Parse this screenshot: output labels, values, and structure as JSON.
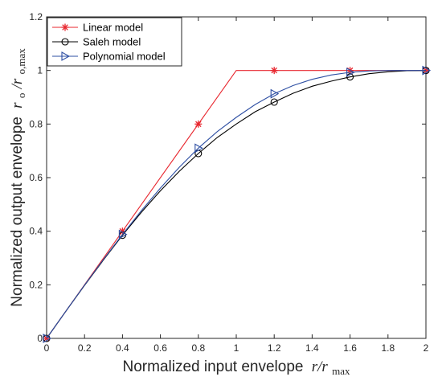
{
  "chart_data": {
    "type": "line",
    "title": "",
    "xlabel": "Normalized input envelope",
    "xlabel_math": "r/r",
    "xlabel_math_sub": "max",
    "ylabel": "Normalized output envelope",
    "ylabel_math": "r",
    "ylabel_math_sub1": "o",
    "ylabel_math_mid": "/r",
    "ylabel_math_sub2": "o,max",
    "xlim": [
      0,
      2
    ],
    "ylim": [
      0,
      1.2
    ],
    "xticks": [
      "0",
      "0.2",
      "0.4",
      "0.6",
      "0.8",
      "1",
      "1.2",
      "1.4",
      "1.6",
      "1.8",
      "2"
    ],
    "yticks": [
      "0",
      "0.2",
      "0.4",
      "0.6",
      "0.8",
      "1",
      "1.2"
    ],
    "grid": false,
    "legend_position": "top-left",
    "series": [
      {
        "name": "Linear model",
        "color": "#e8262e",
        "marker": "asterisk",
        "line": {
          "x": [
            0,
            1,
            2
          ],
          "y": [
            0,
            1,
            1
          ]
        },
        "markers": {
          "x": [
            0,
            0.4,
            0.8,
            1.2,
            1.6,
            2
          ],
          "y": [
            0,
            0.4,
            0.8,
            1,
            1,
            1
          ]
        }
      },
      {
        "name": "Saleh model",
        "color": "#000000",
        "marker": "circle",
        "line": {
          "x": [
            0,
            0.1,
            0.2,
            0.3,
            0.4,
            0.5,
            0.6,
            0.7,
            0.8,
            0.9,
            1.0,
            1.1,
            1.2,
            1.3,
            1.4,
            1.5,
            1.6,
            1.7,
            1.8,
            1.9,
            2.0
          ],
          "y": [
            0,
            0.1,
            0.198,
            0.293,
            0.385,
            0.471,
            0.551,
            0.624,
            0.69,
            0.75,
            0.8,
            0.846,
            0.882,
            0.915,
            0.941,
            0.96,
            0.976,
            0.988,
            0.995,
            0.999,
            1.0
          ]
        },
        "markers": {
          "x": [
            0,
            0.4,
            0.8,
            1.2,
            1.6,
            2
          ],
          "y": [
            0,
            0.385,
            0.69,
            0.882,
            0.976,
            1.0
          ]
        }
      },
      {
        "name": "Polynomial model",
        "color": "#2e4fa3",
        "marker": "triangle-right",
        "line": {
          "x": [
            0,
            0.1,
            0.2,
            0.3,
            0.4,
            0.5,
            0.6,
            0.7,
            0.8,
            0.9,
            1.0,
            1.1,
            1.2,
            1.3,
            1.4,
            1.5,
            1.6,
            1.7,
            1.8,
            1.9,
            2.0
          ],
          "y": [
            0,
            0.1,
            0.199,
            0.295,
            0.388,
            0.477,
            0.561,
            0.639,
            0.71,
            0.772,
            0.825,
            0.873,
            0.913,
            0.944,
            0.967,
            0.983,
            0.993,
            0.998,
            1.0,
            1.0,
            1.0
          ]
        },
        "markers": {
          "x": [
            0,
            0.4,
            0.8,
            1.2,
            1.6,
            2
          ],
          "y": [
            0,
            0.388,
            0.71,
            0.913,
            0.993,
            1.0
          ]
        }
      }
    ]
  }
}
